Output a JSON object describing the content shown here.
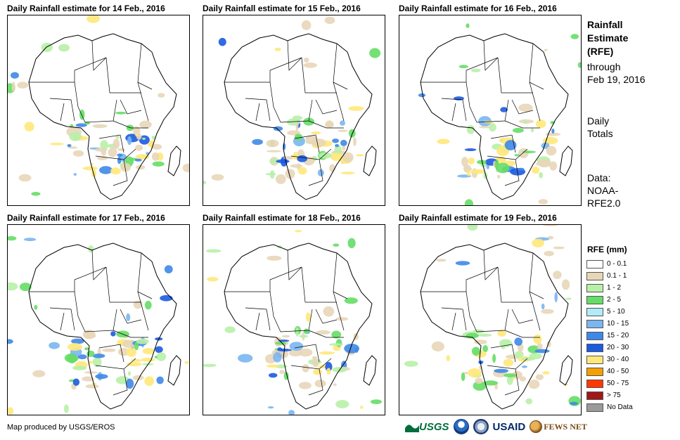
{
  "panels": [
    {
      "title": "Daily Rainfall estimate for 14 Feb., 2016"
    },
    {
      "title": "Daily Rainfall estimate for 15 Feb., 2016"
    },
    {
      "title": "Daily Rainfall estimate for 16 Feb., 2016"
    },
    {
      "title": "Daily Rainfall estimate for 17 Feb., 2016"
    },
    {
      "title": "Daily Rainfall estimate for 18 Feb., 2016"
    },
    {
      "title": "Daily Rainfall estimate for 19 Feb., 2016"
    }
  ],
  "side": {
    "title_line1": "Rainfall",
    "title_line2": "Estimate",
    "title_line3": "(RFE)",
    "through_line1": "through",
    "through_line2": "Feb 19, 2016",
    "totals_line1": "Daily",
    "totals_line2": "Totals",
    "data_line1": "Data:",
    "data_line2": "NOAA-",
    "data_line3": "RFE2.0"
  },
  "legend": {
    "title": "RFE (mm)",
    "items": [
      {
        "label": "0 - 0.1",
        "color": "#ffffff"
      },
      {
        "label": "0.1 - 1",
        "color": "#e8d6b8"
      },
      {
        "label": "1 - 2",
        "color": "#b8f0a8"
      },
      {
        "label": "2 - 5",
        "color": "#66dd66"
      },
      {
        "label": "5 - 10",
        "color": "#b0ecf8"
      },
      {
        "label": "10 - 15",
        "color": "#7ab6f0"
      },
      {
        "label": "15 - 20",
        "color": "#3e88e8"
      },
      {
        "label": "20 - 30",
        "color": "#1c5ae0"
      },
      {
        "label": "30 - 40",
        "color": "#ffe87a"
      },
      {
        "label": "40 - 50",
        "color": "#f5a000"
      },
      {
        "label": "50 - 75",
        "color": "#ff3a00"
      },
      {
        "label": "> 75",
        "color": "#a01818"
      },
      {
        "label": "No Data",
        "color": "#9a9a9a"
      }
    ]
  },
  "credit": "Map produced by USGS/EROS",
  "logos": {
    "usgs": "USGS",
    "usaid": "USAID",
    "fews": "FEWS NET"
  }
}
